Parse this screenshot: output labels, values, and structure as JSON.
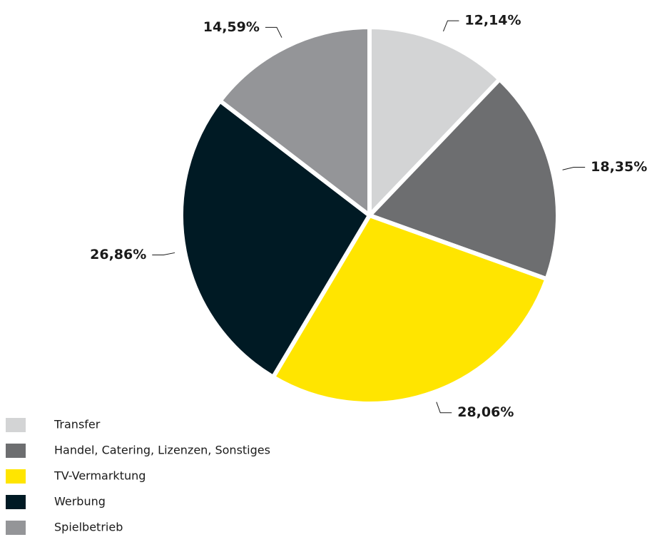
{
  "chart_data": {
    "type": "pie",
    "categories": [
      "Transfer",
      "Handel, Catering, Lizenzen, Sonstiges",
      "TV-Vermarktung",
      "Werbung",
      "Spielbetrieb"
    ],
    "values": [
      12.14,
      18.35,
      28.06,
      26.86,
      14.59
    ],
    "value_labels": [
      "12,14%",
      "18,35%",
      "28,06%",
      "26,86%",
      "14,59%"
    ],
    "colors": [
      "#d3d4d5",
      "#6d6e70",
      "#ffe500",
      "#001a24",
      "#949598"
    ],
    "legend": "bottom-left"
  }
}
